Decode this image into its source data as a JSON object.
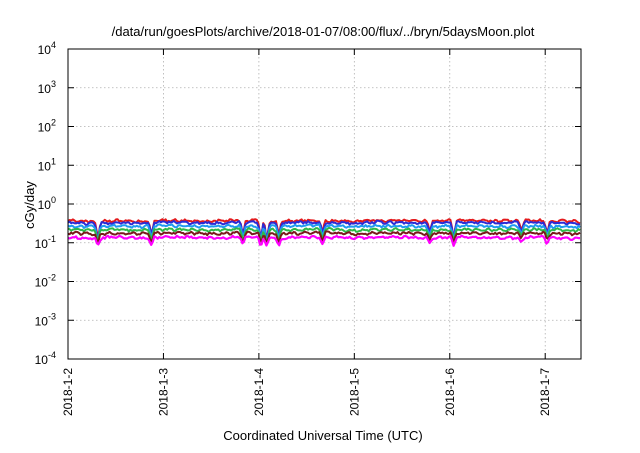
{
  "chart_data": {
    "type": "line",
    "title": "/data/run/goesPlots/archive/2018-01-07/08:00/flux/../bryn/5daysMoon.plot",
    "xlabel": "Coordinated Universal Time (UTC)",
    "ylabel": "cGy/day",
    "y_scale": "log",
    "ylim": [
      0.0001,
      10000
    ],
    "xlim": [
      "2018-01-02T00:00",
      "2018-01-07T09:00"
    ],
    "x_tick_labels": [
      "2018-1-2",
      "2018-1-3",
      "2018-1-4",
      "2018-1-5",
      "2018-1-6",
      "2018-1-7"
    ],
    "y_ticks": [
      {
        "base": "10",
        "exp": "-4"
      },
      {
        "base": "10",
        "exp": "-3"
      },
      {
        "base": "10",
        "exp": "-2"
      },
      {
        "base": "10",
        "exp": "-1"
      },
      {
        "base": "10",
        "exp": "0"
      },
      {
        "base": "10",
        "exp": "1"
      },
      {
        "base": "10",
        "exp": "2"
      },
      {
        "base": "10",
        "exp": "3"
      },
      {
        "base": "10",
        "exp": "4"
      }
    ],
    "grid": true,
    "x": [
      "2018-01-02T00:00",
      "2018-01-02T06:00",
      "2018-01-02T12:00",
      "2018-01-02T18:00",
      "2018-01-03T00:00",
      "2018-01-03T06:00",
      "2018-01-03T12:00",
      "2018-01-03T18:00",
      "2018-01-04T00:00",
      "2018-01-04T06:00",
      "2018-01-04T12:00",
      "2018-01-04T18:00",
      "2018-01-05T00:00",
      "2018-01-05T06:00",
      "2018-01-05T12:00",
      "2018-01-05T18:00",
      "2018-01-06T00:00",
      "2018-01-06T06:00",
      "2018-01-06T12:00",
      "2018-01-06T18:00",
      "2018-01-07T00:00",
      "2018-01-07T06:00",
      "2018-01-07T09:00"
    ],
    "series": [
      {
        "color": "#e41a1c",
        "values": [
          0.38,
          0.35,
          0.37,
          0.36,
          0.38,
          0.37,
          0.36,
          0.38,
          0.37,
          0.36,
          0.38,
          0.37,
          0.36,
          0.38,
          0.37,
          0.36,
          0.38,
          0.37,
          0.36,
          0.38,
          0.37,
          0.36,
          0.35
        ]
      },
      {
        "color": "#2b2bd6",
        "values": [
          0.33,
          0.31,
          0.33,
          0.32,
          0.34,
          0.33,
          0.32,
          0.34,
          0.33,
          0.32,
          0.34,
          0.33,
          0.32,
          0.34,
          0.33,
          0.32,
          0.34,
          0.33,
          0.32,
          0.34,
          0.33,
          0.32,
          0.31
        ]
      },
      {
        "color": "#1e9bf0",
        "values": [
          0.27,
          0.26,
          0.27,
          0.26,
          0.28,
          0.27,
          0.26,
          0.27,
          0.27,
          0.26,
          0.28,
          0.27,
          0.26,
          0.27,
          0.27,
          0.26,
          0.27,
          0.27,
          0.26,
          0.27,
          0.27,
          0.26,
          0.26
        ]
      },
      {
        "color": "#2db84a",
        "values": [
          0.22,
          0.21,
          0.22,
          0.21,
          0.22,
          0.22,
          0.21,
          0.22,
          0.22,
          0.21,
          0.22,
          0.22,
          0.21,
          0.22,
          0.22,
          0.21,
          0.22,
          0.22,
          0.21,
          0.22,
          0.22,
          0.21,
          0.21
        ]
      },
      {
        "color": "#7a1a1a",
        "values": [
          0.18,
          0.17,
          0.18,
          0.17,
          0.18,
          0.18,
          0.17,
          0.18,
          0.18,
          0.17,
          0.18,
          0.18,
          0.17,
          0.18,
          0.18,
          0.17,
          0.18,
          0.18,
          0.17,
          0.18,
          0.18,
          0.17,
          0.17
        ]
      },
      {
        "color": "#ff00ff",
        "values": [
          0.14,
          0.13,
          0.14,
          0.13,
          0.14,
          0.14,
          0.13,
          0.14,
          0.14,
          0.13,
          0.14,
          0.14,
          0.13,
          0.14,
          0.14,
          0.13,
          0.14,
          0.14,
          0.13,
          0.14,
          0.14,
          0.13,
          0.13
        ]
      }
    ],
    "dips": [
      {
        "x": "2018-01-02T07:30",
        "depth": 0.55
      },
      {
        "x": "2018-01-02T21:00",
        "depth": 0.6
      },
      {
        "x": "2018-01-03T20:00",
        "depth": 0.6
      },
      {
        "x": "2018-01-04T00:30",
        "depth": 0.55
      },
      {
        "x": "2018-01-04T02:00",
        "depth": 0.5
      },
      {
        "x": "2018-01-04T05:00",
        "depth": 0.6
      },
      {
        "x": "2018-01-04T16:00",
        "depth": 0.65
      },
      {
        "x": "2018-01-05T19:00",
        "depth": 0.7
      },
      {
        "x": "2018-01-06T01:00",
        "depth": 0.55
      },
      {
        "x": "2018-01-06T18:00",
        "depth": 0.7
      },
      {
        "x": "2018-01-07T00:30",
        "depth": 0.65
      }
    ]
  }
}
